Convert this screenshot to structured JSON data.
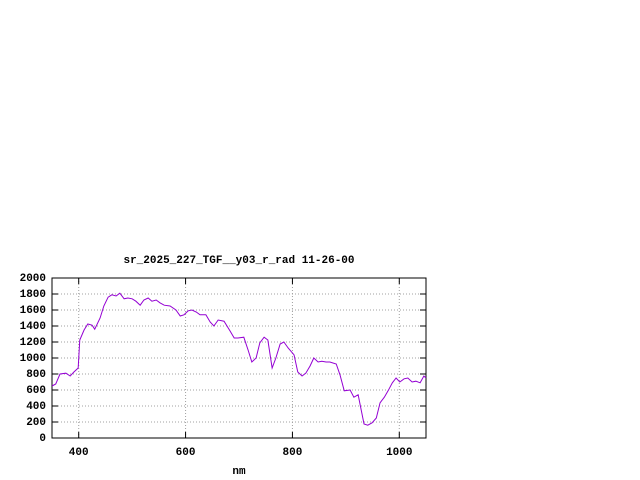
{
  "chart_data": {
    "type": "line",
    "title": "sr_2025_227_TGF__y03_r_rad 11-26-00",
    "x_label": "nm",
    "color": "#9400d3",
    "grid": true,
    "xlim": [
      350,
      1050
    ],
    "xticks": [
      400,
      600,
      800,
      1000
    ],
    "ylim": [
      0,
      2000
    ],
    "yticks": [
      0,
      200,
      400,
      600,
      800,
      1000,
      1200,
      1400,
      1600,
      1800,
      2000
    ],
    "x": [
      350,
      357,
      365,
      376,
      384,
      391,
      399,
      402,
      410,
      417,
      425,
      430,
      440,
      447,
      455,
      462,
      470,
      477,
      485,
      492,
      500,
      507,
      515,
      522,
      530,
      537,
      545,
      552,
      560,
      571,
      582,
      590,
      597,
      605,
      612,
      620,
      627,
      638,
      646,
      653,
      661,
      672,
      683,
      691,
      698,
      709,
      717,
      724,
      732,
      739,
      747,
      754,
      762,
      769,
      777,
      784,
      792,
      803,
      810,
      818,
      825,
      833,
      840,
      848,
      855,
      863,
      870,
      882,
      889,
      897,
      908,
      915,
      923,
      934,
      941,
      949,
      957,
      964,
      972,
      979,
      987,
      994,
      1001,
      1009,
      1016,
      1024,
      1031,
      1039,
      1046,
      1050
    ],
    "values": [
      650,
      675,
      800,
      810,
      775,
      825,
      875,
      1225,
      1350,
      1425,
      1410,
      1360,
      1500,
      1650,
      1760,
      1790,
      1775,
      1810,
      1740,
      1750,
      1740,
      1710,
      1660,
      1725,
      1750,
      1710,
      1725,
      1690,
      1660,
      1650,
      1600,
      1525,
      1540,
      1590,
      1600,
      1575,
      1540,
      1540,
      1450,
      1400,
      1475,
      1460,
      1340,
      1250,
      1250,
      1260,
      1100,
      950,
      1000,
      1190,
      1260,
      1225,
      875,
      1000,
      1175,
      1200,
      1125,
      1040,
      825,
      775,
      810,
      900,
      1000,
      950,
      960,
      950,
      950,
      925,
      790,
      590,
      600,
      510,
      540,
      175,
      160,
      190,
      250,
      440,
      510,
      590,
      690,
      750,
      700,
      740,
      750,
      700,
      710,
      690,
      775,
      750
    ]
  }
}
